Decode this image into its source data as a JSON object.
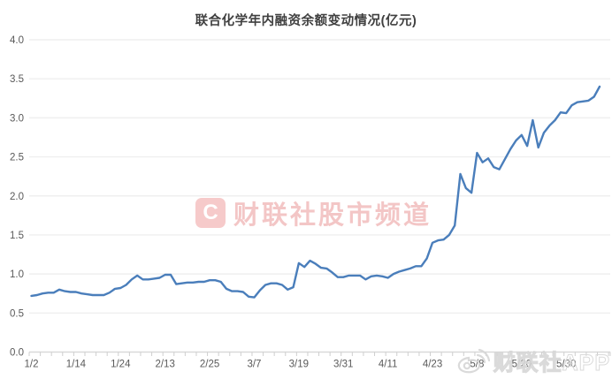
{
  "page": {
    "title": "联合化学年内融资余额变动情况(亿元)"
  },
  "colors": {
    "line": "#4a7ebb",
    "grid": "#efefef",
    "axis": "#d9d9d9",
    "tick": "#cfcfcf",
    "tick_label": "#595959",
    "title_text": "#404040",
    "watermark_pink": "#f3c6c6",
    "watermark_gray": "#d7d7d7"
  },
  "watermarks": {
    "center": {
      "logo_letter": "C",
      "logo_icon": "cailianshe-logo-icon",
      "text": "财联社股市频道"
    },
    "bottom_right": {
      "icon": "weibo-icon",
      "text": "财联社APP"
    }
  },
  "chart_data": {
    "type": "line",
    "title": "联合化学年内融资余额变动情况(亿元)",
    "xlabel": "",
    "ylabel": "",
    "ylim": [
      0,
      4
    ],
    "grid": true,
    "legend": false,
    "y_ticks": [
      "0.0",
      "0.5",
      "1.0",
      "1.5",
      "2.0",
      "2.5",
      "3.0",
      "3.5",
      "4.0"
    ],
    "x_tick_labels": [
      "1/2",
      "1/14",
      "1/24",
      "2/13",
      "2/25",
      "3/7",
      "3/19",
      "3/31",
      "4/11",
      "4/23",
      "5/8",
      "5/20",
      "5/30"
    ],
    "label_interval": 8,
    "minor_tick_interval": 2,
    "values": [
      0.72,
      0.73,
      0.75,
      0.76,
      0.76,
      0.8,
      0.78,
      0.77,
      0.77,
      0.75,
      0.74,
      0.73,
      0.73,
      0.73,
      0.76,
      0.81,
      0.82,
      0.86,
      0.93,
      0.98,
      0.93,
      0.93,
      0.94,
      0.95,
      0.99,
      0.99,
      0.87,
      0.88,
      0.89,
      0.89,
      0.9,
      0.9,
      0.92,
      0.92,
      0.9,
      0.81,
      0.78,
      0.78,
      0.77,
      0.71,
      0.7,
      0.79,
      0.86,
      0.88,
      0.88,
      0.86,
      0.8,
      0.83,
      1.14,
      1.09,
      1.17,
      1.13,
      1.08,
      1.07,
      1.02,
      0.96,
      0.96,
      0.98,
      0.98,
      0.98,
      0.93,
      0.97,
      0.98,
      0.97,
      0.95,
      1.0,
      1.03,
      1.05,
      1.07,
      1.1,
      1.1,
      1.2,
      1.4,
      1.43,
      1.44,
      1.5,
      1.62,
      2.28,
      2.1,
      2.04,
      2.55,
      2.43,
      2.48,
      2.37,
      2.34,
      2.47,
      2.6,
      2.71,
      2.78,
      2.64,
      2.97,
      2.62,
      2.81,
      2.9,
      2.97,
      3.07,
      3.06,
      3.16,
      3.2,
      3.21,
      3.22,
      3.27,
      3.4
    ]
  }
}
